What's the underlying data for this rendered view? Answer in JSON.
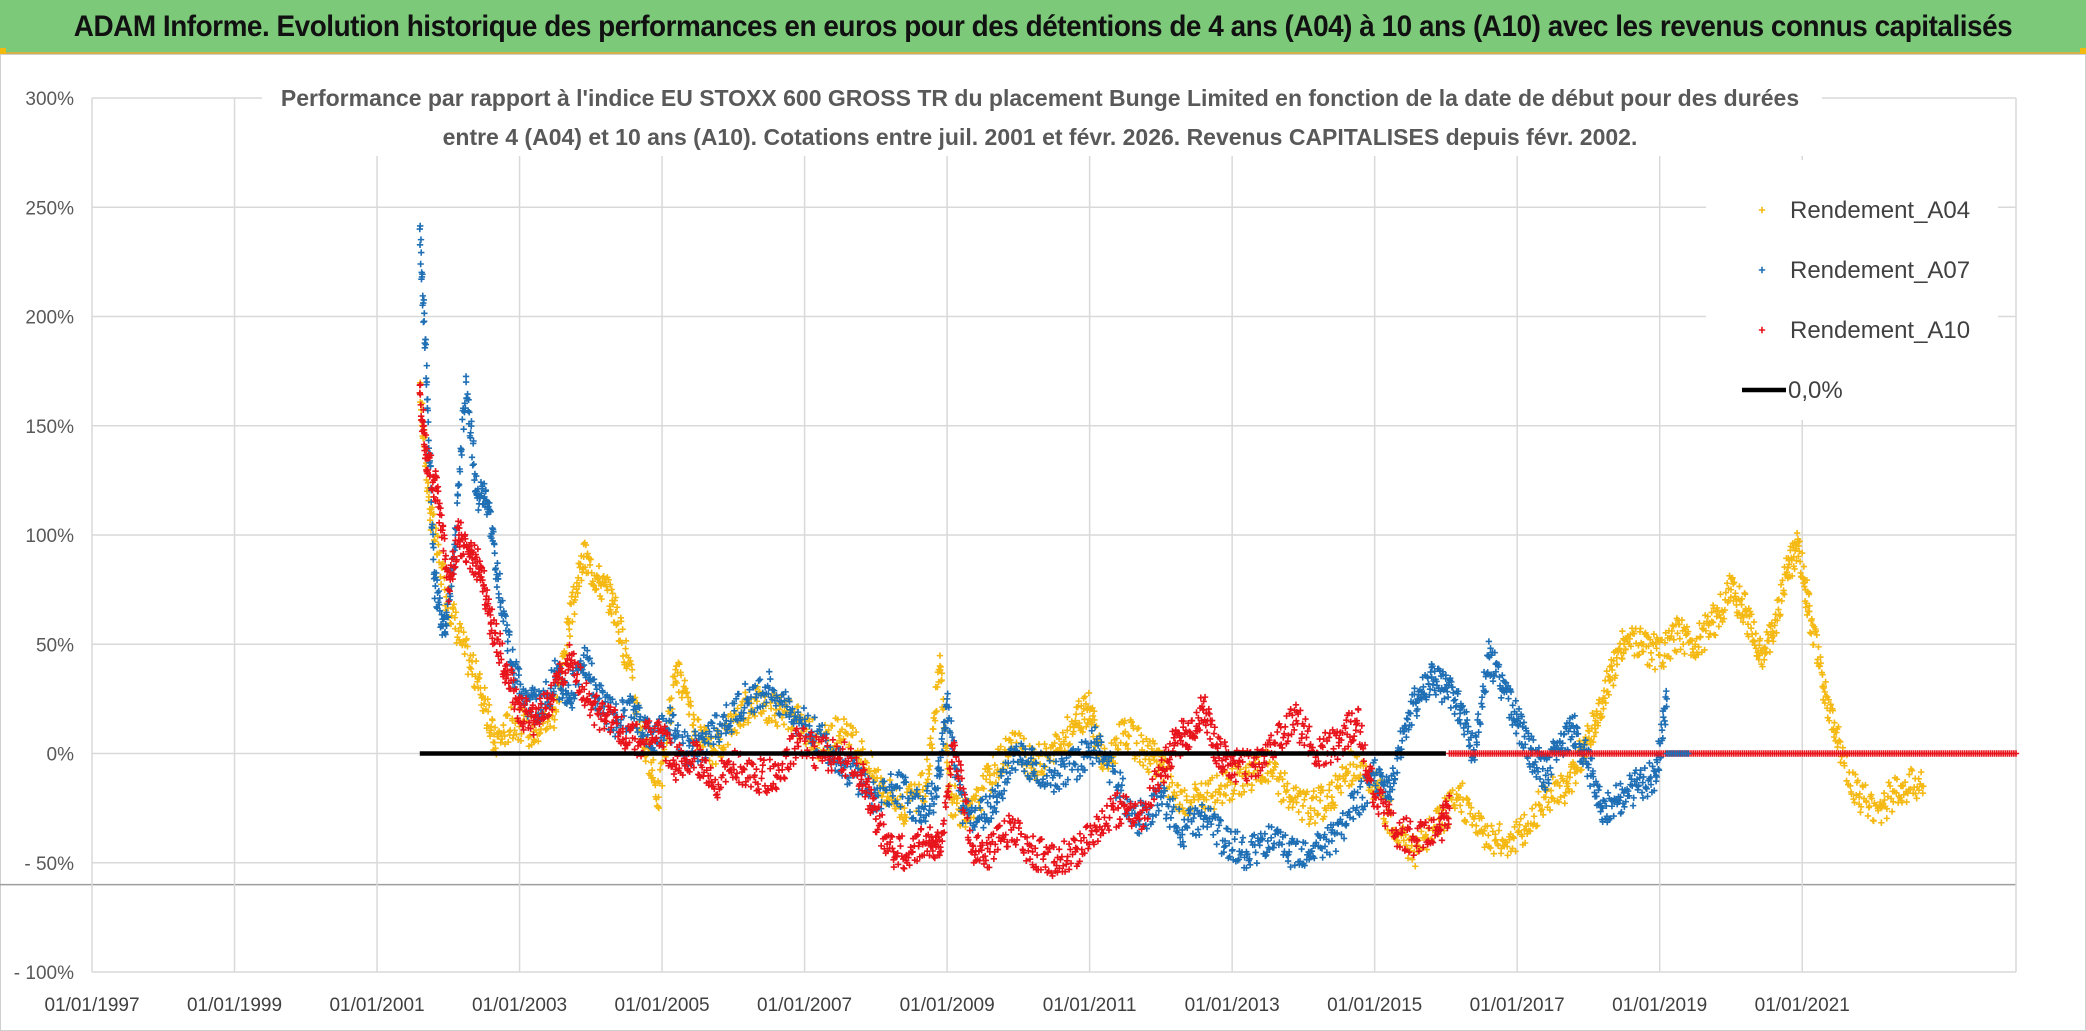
{
  "header": {
    "banner_title": "ADAM Informe. Evolution historique des performances en euros pour des détentions de 4 ans (A04) à 10 ans (A10) avec les revenus connus capitalisés"
  },
  "colors": {
    "banner_bg": "#7dc97a",
    "a04": "#f5b914",
    "a07": "#1f6fb5",
    "a10": "#e8141c",
    "zero_line": "#000000",
    "grid": "#d9d9d9"
  },
  "chart_data": {
    "type": "scatter",
    "title_line1": "Performance par rapport à l'indice EU STOXX 600 GROSS TR  du placement Bunge Limited en fonction de la date de début pour des durées",
    "title_line2": "entre 4 (A04) et 10 ans (A10). Cotations entre juil. 2001 et févr. 2026. Revenus CAPITALISES depuis févr. 2002.",
    "x_unit": "year",
    "xlim": [
      1997.0,
      2024.0
    ],
    "ylim": [
      -100,
      300
    ],
    "x_ticks": [
      {
        "value": 1997.0,
        "label": "01/01/1997"
      },
      {
        "value": 1999.0,
        "label": "01/01/1999"
      },
      {
        "value": 2001.0,
        "label": "01/01/2001"
      },
      {
        "value": 2003.0,
        "label": "01/01/2003"
      },
      {
        "value": 2005.0,
        "label": "01/01/2005"
      },
      {
        "value": 2007.0,
        "label": "01/01/2007"
      },
      {
        "value": 2009.0,
        "label": "01/01/2009"
      },
      {
        "value": 2011.0,
        "label": "01/01/2011"
      },
      {
        "value": 2013.0,
        "label": "01/01/2013"
      },
      {
        "value": 2015.0,
        "label": "01/01/2015"
      },
      {
        "value": 2017.0,
        "label": "01/01/2017"
      },
      {
        "value": 2019.0,
        "label": "01/01/2019"
      },
      {
        "value": 2021.0,
        "label": "01/01/2021"
      }
    ],
    "y_ticks": [
      {
        "value": 300,
        "label": "300%"
      },
      {
        "value": 250,
        "label": "250%"
      },
      {
        "value": 200,
        "label": "200%"
      },
      {
        "value": 150,
        "label": "150%"
      },
      {
        "value": 100,
        "label": "100%"
      },
      {
        "value": 50,
        "label": "50%"
      },
      {
        "value": 0,
        "label": "0%"
      },
      {
        "value": -50,
        "label": "- 50%"
      },
      {
        "value": -100,
        "label": "- 100%"
      }
    ],
    "legend": {
      "position": "top-right",
      "entries": [
        "Rendement_A04",
        "Rendement_A07",
        "Rendement_A10",
        "0,0%"
      ]
    },
    "series": [
      {
        "name": "Rendement_A04",
        "color": "#f5b914",
        "x": [
          2001.6,
          2001.75,
          2001.95,
          2002.2,
          2002.45,
          2002.65,
          2002.9,
          2003.2,
          2003.5,
          2003.7,
          2003.9,
          2004.1,
          2004.3,
          2004.5,
          2004.75,
          2004.95,
          2005.2,
          2005.45,
          2005.7,
          2006.0,
          2006.3,
          2006.6,
          2006.9,
          2007.2,
          2007.5,
          2007.8,
          2008.1,
          2008.4,
          2008.7,
          2008.9,
          2009.05,
          2009.3,
          2009.6,
          2009.9,
          2010.2,
          2010.5,
          2010.8,
          2011.0,
          2011.2,
          2011.5,
          2011.8,
          2012.0,
          2012.3,
          2012.6,
          2012.9,
          2013.2,
          2013.5,
          2013.8,
          2014.1,
          2014.4,
          2014.7,
          2015.0,
          2015.3,
          2015.6,
          2015.9,
          2016.2,
          2016.5,
          2016.8,
          2017.1,
          2017.4,
          2017.7,
          2017.9,
          2018.1,
          2018.3,
          2018.5,
          2018.75,
          2019.0,
          2019.25,
          2019.5,
          2019.75,
          2020.0,
          2020.2,
          2020.4,
          2020.6,
          2020.8,
          2020.95,
          2021.1,
          2021.3,
          2021.5,
          2021.8,
          2022.1,
          2022.4,
          2022.7
        ],
        "y": [
          165,
          110,
          75,
          50,
          30,
          5,
          15,
          10,
          20,
          60,
          90,
          80,
          70,
          45,
          5,
          -20,
          40,
          10,
          0,
          15,
          25,
          20,
          15,
          5,
          10,
          0,
          -15,
          -25,
          -15,
          40,
          -20,
          -30,
          -10,
          5,
          -5,
          0,
          15,
          20,
          -5,
          10,
          0,
          -5,
          -25,
          -20,
          -15,
          -10,
          -5,
          -20,
          -25,
          -20,
          -5,
          -15,
          -35,
          -45,
          -30,
          -20,
          -35,
          -40,
          -35,
          -20,
          -15,
          0,
          15,
          35,
          50,
          50,
          45,
          55,
          50,
          60,
          75,
          65,
          45,
          55,
          85,
          95,
          65,
          30,
          5,
          -20,
          -25,
          -15,
          -15
        ]
      },
      {
        "name": "Rendement_A07",
        "color": "#1f6fb5",
        "x": [
          2001.6,
          2001.7,
          2001.8,
          2001.95,
          2002.1,
          2002.25,
          2002.4,
          2002.55,
          2002.7,
          2002.9,
          2003.1,
          2003.3,
          2003.5,
          2003.7,
          2003.9,
          2004.1,
          2004.35,
          2004.6,
          2004.85,
          2005.1,
          2005.35,
          2005.6,
          2005.9,
          2006.2,
          2006.5,
          2006.8,
          2007.1,
          2007.4,
          2007.7,
          2008.0,
          2008.3,
          2008.6,
          2008.85,
          2009.0,
          2009.2,
          2009.45,
          2009.7,
          2009.95,
          2010.2,
          2010.5,
          2010.8,
          2011.1,
          2011.4,
          2011.7,
          2012.0,
          2012.3,
          2012.6,
          2012.9,
          2013.2,
          2013.5,
          2013.8,
          2014.1,
          2014.4,
          2014.7,
          2015.0,
          2015.2,
          2015.4,
          2015.6,
          2015.8,
          2016.0,
          2016.2,
          2016.4,
          2016.6,
          2016.8,
          2017.0,
          2017.2,
          2017.4,
          2017.6,
          2017.8,
          2018.0,
          2018.2,
          2018.45,
          2018.7,
          2018.95,
          2019.1
        ],
        "y": [
          240,
          170,
          80,
          55,
          100,
          170,
          120,
          115,
          80,
          40,
          25,
          20,
          35,
          25,
          45,
          25,
          15,
          20,
          5,
          15,
          0,
          5,
          15,
          25,
          30,
          20,
          10,
          0,
          -10,
          -20,
          -15,
          -25,
          -20,
          25,
          -25,
          -30,
          -20,
          0,
          -5,
          -10,
          -5,
          5,
          -15,
          -30,
          -20,
          -35,
          -30,
          -40,
          -45,
          -40,
          -45,
          -45,
          -40,
          -25,
          -10,
          -20,
          10,
          25,
          35,
          30,
          20,
          0,
          45,
          30,
          15,
          0,
          -10,
          5,
          10,
          -5,
          -25,
          -20,
          -15,
          -10,
          25
        ]
      },
      {
        "name": "Rendement_A10",
        "color": "#e8141c",
        "x": [
          2001.6,
          2001.7,
          2001.85,
          2002.0,
          2002.15,
          2002.3,
          2002.45,
          2002.6,
          2002.8,
          2003.0,
          2003.2,
          2003.45,
          2003.7,
          2003.95,
          2004.2,
          2004.45,
          2004.7,
          2004.95,
          2005.2,
          2005.45,
          2005.7,
          2006.0,
          2006.3,
          2006.6,
          2006.9,
          2007.2,
          2007.5,
          2007.8,
          2008.0,
          2008.25,
          2008.5,
          2008.75,
          2008.9,
          2009.1,
          2009.35,
          2009.6,
          2009.9,
          2010.2,
          2010.5,
          2010.8,
          2011.1,
          2011.4,
          2011.7,
          2012.0,
          2012.2,
          2012.4,
          2012.6,
          2012.8,
          2013.0,
          2013.3,
          2013.6,
          2013.9,
          2014.2,
          2014.5,
          2014.75,
          2015.0,
          2015.3,
          2015.6,
          2015.9,
          2016.05
        ],
        "y": [
          165,
          135,
          120,
          75,
          100,
          90,
          85,
          60,
          40,
          20,
          15,
          25,
          45,
          25,
          15,
          10,
          5,
          10,
          -5,
          0,
          -15,
          -5,
          -10,
          -10,
          5,
          0,
          0,
          -10,
          -30,
          -45,
          -45,
          -40,
          -45,
          5,
          -45,
          -45,
          -35,
          -45,
          -50,
          -45,
          -35,
          -25,
          -30,
          -10,
          5,
          10,
          20,
          0,
          -5,
          -5,
          5,
          15,
          0,
          5,
          15,
          -20,
          -35,
          -40,
          -35,
          -25
        ]
      }
    ],
    "flat_segments": [
      {
        "series": "Rendement_A10",
        "x_from": 2016.05,
        "x_to": 2024.0,
        "y": 0
      },
      {
        "series": "Rendement_A07",
        "x_from": 2019.1,
        "x_to": 2019.4,
        "y": 0
      }
    ],
    "zero_line": {
      "label": "0,0%",
      "x_from": 2001.6,
      "x_to": 2016.0,
      "y": 0
    }
  }
}
